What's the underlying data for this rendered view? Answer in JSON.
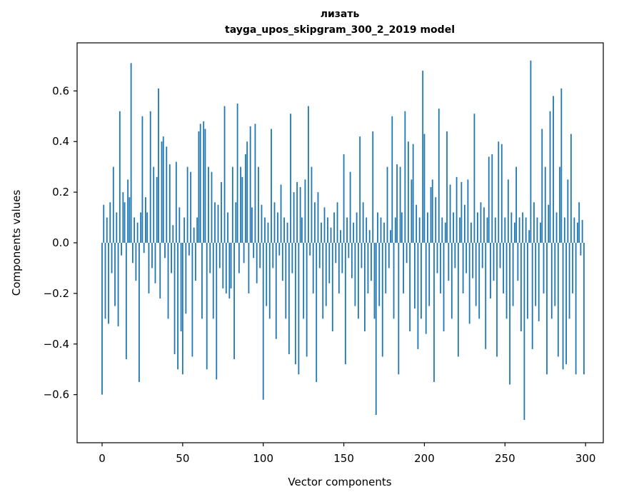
{
  "figure": {
    "title_line1": "лизать",
    "title_line2": "tayga_upos_skipgram_300_2_2019 model"
  },
  "chart_data": {
    "type": "bar",
    "title": "лизать",
    "subtitle": "tayga_upos_skipgram_300_2_2019 model",
    "xlabel": "Vector components",
    "ylabel": "Components values",
    "bar_color": "#1f77b4",
    "n_components": 300,
    "xlim": [
      -15.5,
      311
    ],
    "ylim": [
      -0.79,
      0.79
    ],
    "xticks": [
      0,
      50,
      100,
      150,
      200,
      250,
      300
    ],
    "yticks": [
      -0.6,
      -0.4,
      -0.2,
      0.0,
      0.2,
      0.4,
      0.6
    ],
    "grid": false,
    "legend": "none",
    "values": [
      -0.6,
      0.15,
      -0.3,
      0.1,
      -0.32,
      0.16,
      -0.12,
      0.3,
      -0.25,
      0.12,
      -0.33,
      0.52,
      -0.05,
      0.2,
      0.16,
      -0.46,
      0.25,
      0.18,
      0.71,
      -0.08,
      0.1,
      -0.15,
      0.08,
      -0.55,
      0.12,
      0.5,
      -0.04,
      0.18,
      0.12,
      -0.2,
      0.52,
      -0.1,
      0.3,
      -0.16,
      0.26,
      0.61,
      -0.22,
      0.4,
      0.42,
      -0.06,
      0.38,
      -0.3,
      0.31,
      -0.12,
      0.07,
      -0.44,
      0.32,
      -0.5,
      0.14,
      -0.35,
      -0.52,
      0.1,
      -0.28,
      0.3,
      -0.05,
      0.28,
      -0.45,
      0.06,
      -0.15,
      0.1,
      0.44,
      0.47,
      -0.3,
      0.48,
      0.45,
      -0.5,
      0.3,
      -0.12,
      0.28,
      -0.3,
      0.16,
      -0.54,
      0.15,
      -0.1,
      0.24,
      -0.18,
      0.54,
      -0.2,
      0.12,
      -0.22,
      -0.18,
      0.3,
      -0.46,
      0.16,
      0.55,
      -0.12,
      0.3,
      0.26,
      -0.08,
      0.35,
      0.4,
      -0.2,
      0.46,
      0.14,
      -0.06,
      0.47,
      -0.16,
      0.3,
      -0.1,
      0.15,
      -0.62,
      0.1,
      -0.25,
      0.08,
      -0.3,
      0.45,
      -0.1,
      0.16,
      -0.38,
      0.12,
      -0.05,
      0.23,
      -0.15,
      0.1,
      -0.3,
      0.08,
      -0.44,
      0.51,
      -0.12,
      0.2,
      -0.48,
      0.24,
      -0.52,
      0.22,
      0.1,
      -0.3,
      0.25,
      -0.45,
      0.54,
      -0.05,
      0.3,
      -0.2,
      0.16,
      -0.55,
      0.2,
      -0.1,
      0.08,
      -0.3,
      0.14,
      -0.25,
      0.1,
      -0.16,
      0.06,
      -0.35,
      0.12,
      -0.08,
      0.16,
      -0.2,
      0.05,
      -0.12,
      0.35,
      -0.48,
      0.1,
      -0.06,
      0.28,
      -0.14,
      0.08,
      -0.25,
      0.12,
      -0.3,
      0.42,
      -0.1,
      0.16,
      -0.35,
      0.1,
      -0.2,
      0.05,
      -0.15,
      0.44,
      -0.3,
      -0.68,
      0.12,
      -0.25,
      0.1,
      -0.45,
      0.08,
      -0.2,
      0.3,
      -0.1,
      0.05,
      0.5,
      -0.3,
      0.1,
      0.31,
      -0.52,
      0.3,
      0.12,
      -0.2,
      0.52,
      -0.08,
      0.4,
      -0.35,
      0.25,
      0.39,
      -0.26,
      0.15,
      -0.42,
      0.1,
      -0.3,
      0.68,
      0.43,
      -0.36,
      0.12,
      -0.25,
      0.22,
      0.25,
      -0.55,
      0.18,
      -0.12,
      0.53,
      -0.2,
      0.1,
      -0.35,
      0.08,
      0.44,
      -0.15,
      0.23,
      -0.3,
      0.12,
      -0.1,
      0.26,
      -0.45,
      0.1,
      0.24,
      -0.2,
      0.15,
      -0.12,
      0.25,
      -0.32,
      0.08,
      -0.14,
      0.51,
      -0.25,
      0.12,
      -0.3,
      0.16,
      -0.1,
      0.14,
      -0.42,
      0.1,
      0.34,
      -0.22,
      0.35,
      -0.15,
      0.1,
      -0.45,
      0.4,
      -0.1,
      0.39,
      -0.2,
      0.1,
      -0.3,
      0.25,
      -0.56,
      0.12,
      -0.25,
      0.08,
      0.3,
      -0.15,
      0.1,
      -0.35,
      0.12,
      -0.7,
      0.1,
      -0.3,
      0.05,
      0.72,
      -0.42,
      0.16,
      -0.25,
      0.1,
      -0.31,
      0.08,
      0.45,
      -0.2,
      0.3,
      -0.52,
      0.15,
      0.52,
      -0.3,
      0.58,
      -0.25,
      0.12,
      -0.45,
      0.3,
      0.61,
      -0.5,
      0.1,
      -0.48,
      0.25,
      -0.3,
      0.43,
      -0.2,
      0.1,
      -0.52,
      0.08,
      0.16,
      -0.05,
      0.09,
      -0.52
    ]
  }
}
